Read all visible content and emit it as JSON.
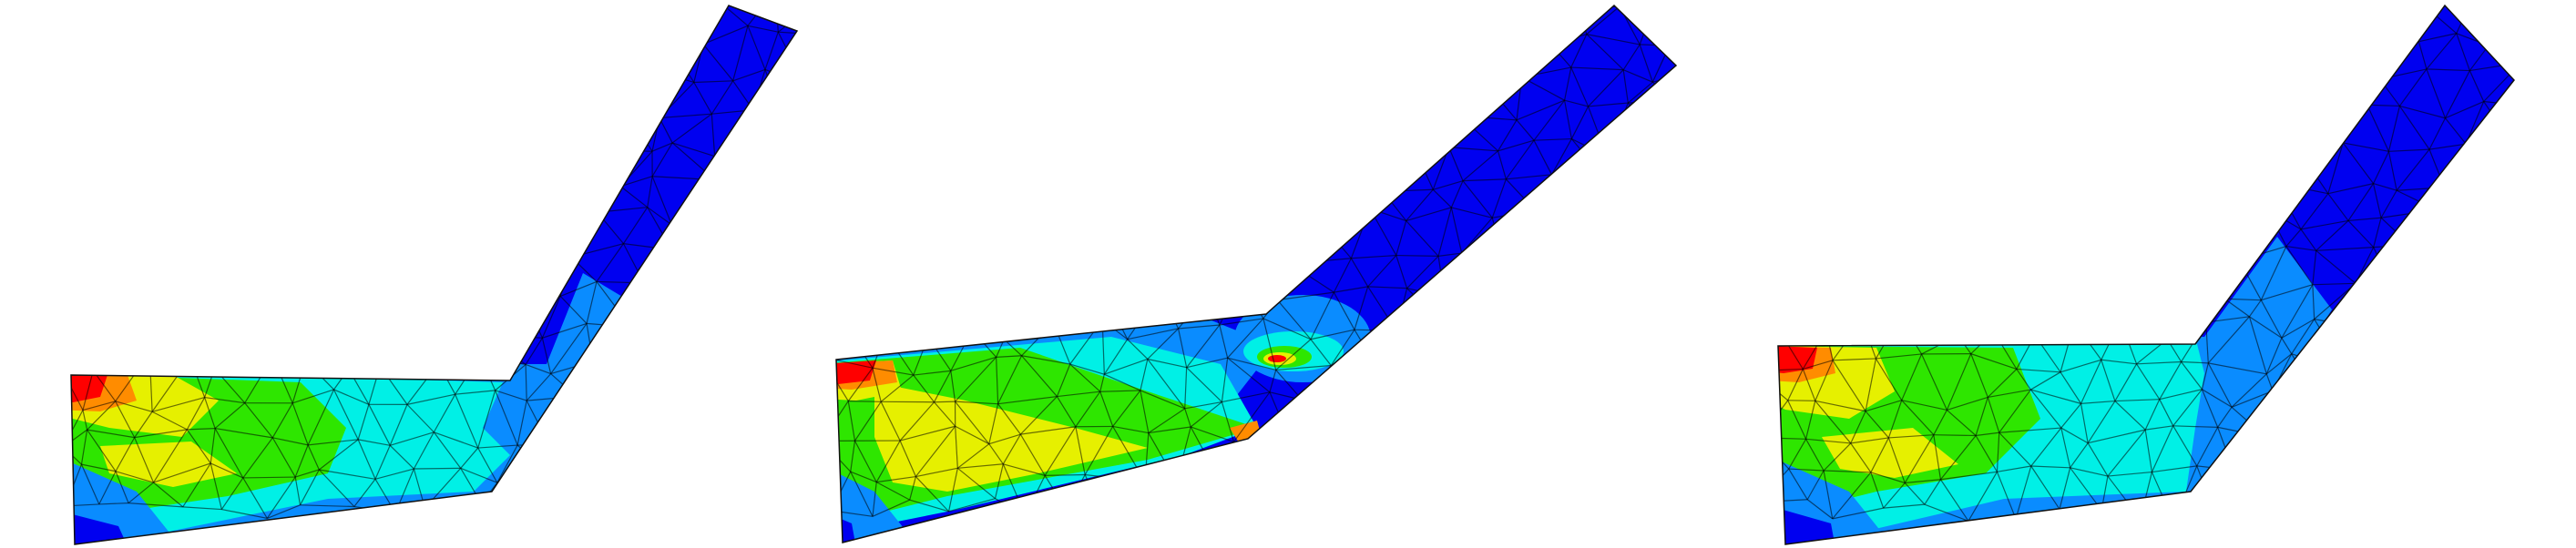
{
  "figure": {
    "description_text": "",
    "colors": {
      "red": "#ff0000",
      "orange": "#ff8c00",
      "yellow": "#e6f000",
      "green": "#2ee600",
      "cyan": "#00f0e6",
      "sky": "#0a8cff",
      "blue": "#0000f0",
      "background": "#ffffff"
    },
    "panels": [
      {
        "name": "left-fem-panel"
      },
      {
        "name": "middle-fem-panel"
      },
      {
        "name": "right-fem-panel"
      }
    ]
  }
}
